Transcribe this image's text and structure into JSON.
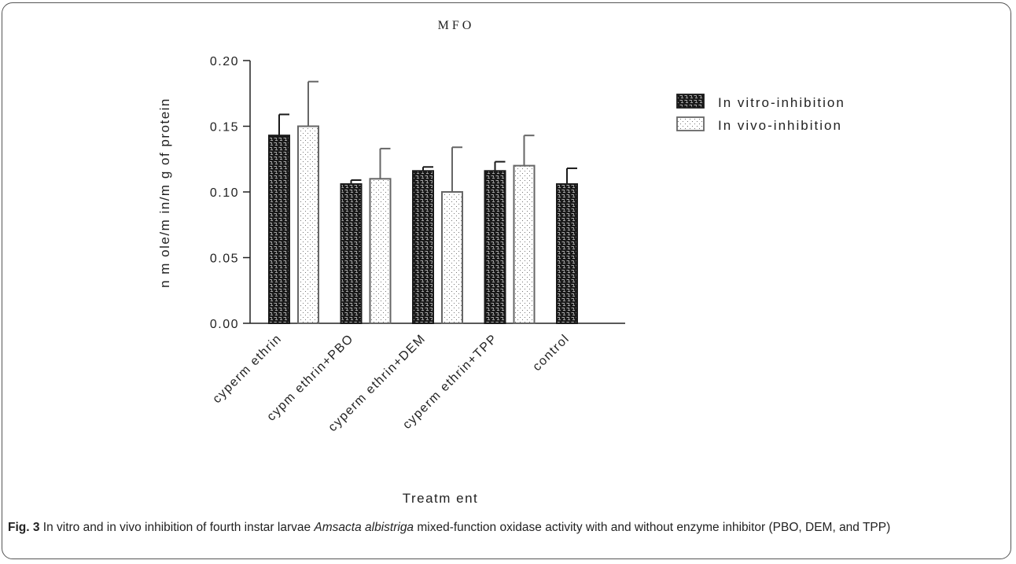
{
  "figure": {
    "caption_label": "Fig. 3",
    "caption_part1": " In vitro and in vivo inhibition of fourth instar larvae ",
    "caption_species": "Amsacta albistriga",
    "caption_part2": " mixed-function oxidase activity with and without enzyme inhibitor (PBO, DEM, and TPP)"
  },
  "chart_data": {
    "type": "bar",
    "title": "M F O",
    "xlabel": "Treatm ent",
    "ylabel": "n m ole/m in/m g of protein",
    "categories": [
      "cyperm ethrin",
      "cypm ethrin+PBO",
      "cyperm ethrin+DEM",
      "cyperm ethrin+TPP",
      "control"
    ],
    "series": [
      {
        "name": "In vitro-inhibition",
        "values": [
          0.143,
          0.106,
          0.116,
          0.116,
          0.106
        ],
        "errors": [
          0.016,
          0.003,
          0.003,
          0.007,
          0.012
        ],
        "pattern": "dense-dark"
      },
      {
        "name": "In vivo-inhibition",
        "values": [
          0.15,
          0.11,
          0.1,
          0.12,
          null
        ],
        "errors": [
          0.034,
          0.023,
          0.034,
          0.023,
          null
        ],
        "pattern": "dotted-light"
      }
    ],
    "ylim": [
      0,
      0.2
    ],
    "yticks": [
      "0.00",
      "0.05",
      "0.10",
      "0.15",
      "0.20"
    ],
    "yticks_values": [
      0,
      0.05,
      0.1,
      0.15,
      0.2
    ],
    "legend_position": "top-right",
    "grid": false,
    "colors": {
      "dark_fill": "#1a1a1a",
      "light_fill": "#ffffff",
      "light_stroke": "#666666",
      "axis": "#222222"
    }
  }
}
